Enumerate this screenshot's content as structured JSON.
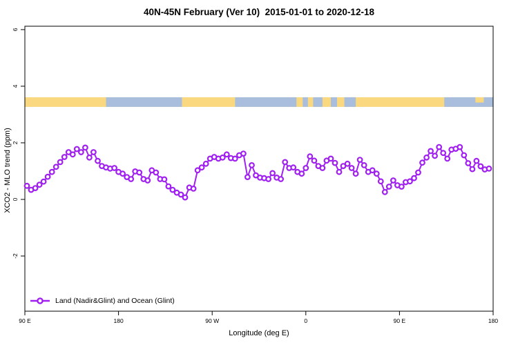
{
  "chart_data": {
    "type": "line",
    "title": "40N-45N February (Ver 10)  2015-01-01 to 2020-12-18",
    "xlabel": "Longitude (deg E)",
    "ylabel": "XCO2 - MLO trend (ppm)",
    "grid": false,
    "legend_position": "bottom-left",
    "xlim": [
      90,
      540
    ],
    "ylim": [
      -3.95,
      6.12
    ],
    "x_axis": {
      "ticks": [
        {
          "lon": 90,
          "label": "90 E"
        },
        {
          "lon": 180,
          "label": "180"
        },
        {
          "lon": 270,
          "label": "90 W"
        },
        {
          "lon": 360,
          "label": "0"
        },
        {
          "lon": 450,
          "label": "90 E"
        },
        {
          "lon": 540,
          "label": "180"
        }
      ]
    },
    "y_axis": {
      "ticks": [
        {
          "v": -2,
          "label": "-2"
        },
        {
          "v": 0,
          "label": "0"
        },
        {
          "v": 2,
          "label": "2"
        },
        {
          "v": 4,
          "label": "4"
        },
        {
          "v": 6,
          "label": "6"
        }
      ]
    },
    "legend": {
      "label": "Land (Nadir&Glint) and Ocean (Glint)"
    },
    "colors": {
      "line": "#A020F0",
      "marker_fill": "#ffffff",
      "land": "#FAD880",
      "ocean": "#A9BEDC",
      "axis": "#000000"
    },
    "band": {
      "description": "land/ocean surface-type strip",
      "v_bottom": 3.27,
      "v_top": 3.61,
      "ocean_segments_lon": [
        [
          168,
          241
        ],
        [
          292,
          351
        ],
        [
          357,
          362
        ],
        [
          367,
          376
        ],
        [
          384,
          390
        ],
        [
          397,
          408
        ],
        [
          493,
          540
        ]
      ],
      "land_patches_lon": [
        [
          523,
          531
        ]
      ]
    },
    "series": [
      {
        "name": "Land (Nadir&Glint) and Ocean (Glint)",
        "x_start_lon": 92,
        "x_step_deg": 4,
        "values": [
          0.48,
          0.34,
          0.4,
          0.52,
          0.63,
          0.8,
          0.97,
          1.15,
          1.32,
          1.5,
          1.67,
          1.59,
          1.78,
          1.67,
          1.83,
          1.48,
          1.67,
          1.36,
          1.18,
          1.13,
          1.09,
          1.11,
          0.97,
          0.91,
          0.79,
          0.72,
          0.99,
          0.95,
          0.72,
          0.67,
          1.03,
          0.95,
          0.72,
          0.71,
          0.46,
          0.34,
          0.24,
          0.17,
          0.07,
          0.42,
          0.38,
          1.03,
          1.13,
          1.26,
          1.44,
          1.5,
          1.44,
          1.48,
          1.59,
          1.46,
          1.44,
          1.56,
          1.62,
          0.79,
          1.21,
          0.85,
          0.77,
          0.75,
          0.72,
          0.93,
          0.77,
          0.72,
          1.32,
          1.11,
          1.13,
          0.97,
          0.91,
          1.11,
          1.52,
          1.37,
          1.18,
          1.11,
          1.37,
          1.44,
          1.29,
          0.97,
          1.18,
          1.26,
          1.11,
          0.91,
          1.4,
          1.21,
          0.97,
          1.03,
          0.91,
          0.64,
          0.26,
          0.45,
          0.67,
          0.5,
          0.45,
          0.61,
          0.64,
          0.75,
          0.95,
          1.3,
          1.48,
          1.71,
          1.54,
          1.85,
          1.64,
          1.44,
          1.76,
          1.79,
          1.85,
          1.56,
          1.28,
          1.07,
          1.36,
          1.17,
          1.06,
          1.09
        ]
      }
    ]
  }
}
